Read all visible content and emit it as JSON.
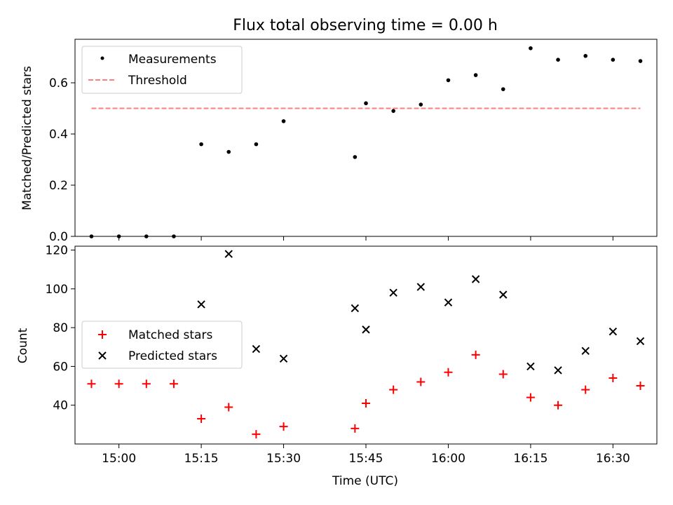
{
  "chart_data": [
    {
      "type": "scatter",
      "title": "Flux total observing time = 0.00 h",
      "xlabel": "",
      "ylabel": "Matched/Predicted stars",
      "xlim": [
        "14:52",
        "16:38"
      ],
      "ylim": [
        0,
        0.77
      ],
      "yticks": [
        0.0,
        0.2,
        0.4,
        0.6
      ],
      "ytick_labels": [
        "0.0",
        "0.2",
        "0.4",
        "0.6"
      ],
      "legend_position": "top-left",
      "series": [
        {
          "name": "Measurements",
          "marker": "dot",
          "color": "#000000",
          "x": [
            "14:55",
            "15:00",
            "15:05",
            "15:10",
            "15:15",
            "15:20",
            "15:25",
            "15:30",
            "15:43",
            "15:45",
            "15:50",
            "15:55",
            "16:00",
            "16:05",
            "16:10",
            "16:15",
            "16:20",
            "16:25",
            "16:30",
            "16:35"
          ],
          "y": [
            0.0,
            0.0,
            0.0,
            0.0,
            0.36,
            0.33,
            0.36,
            0.45,
            0.31,
            0.52,
            0.49,
            0.515,
            0.61,
            0.63,
            0.575,
            0.735,
            0.69,
            0.705,
            0.69,
            0.685
          ]
        },
        {
          "name": "Threshold",
          "marker": "dashed-line",
          "color": "#ff7f7f",
          "x": [
            "14:55",
            "16:35"
          ],
          "y": [
            0.5,
            0.5
          ]
        }
      ]
    },
    {
      "type": "scatter",
      "title": "",
      "xlabel": "Time (UTC)",
      "ylabel": "Count",
      "xlim": [
        "14:52",
        "16:38"
      ],
      "ylim": [
        20,
        122
      ],
      "xticks": [
        "15:00",
        "15:15",
        "15:30",
        "15:45",
        "16:00",
        "16:15",
        "16:30"
      ],
      "yticks": [
        40,
        60,
        80,
        100,
        120
      ],
      "ytick_labels": [
        "40",
        "60",
        "80",
        "100",
        "120"
      ],
      "legend_position": "center-left",
      "series": [
        {
          "name": "Matched stars",
          "marker": "plus",
          "color": "#ff0000",
          "x": [
            "14:55",
            "15:00",
            "15:05",
            "15:10",
            "15:15",
            "15:20",
            "15:25",
            "15:30",
            "15:43",
            "15:45",
            "15:50",
            "15:55",
            "16:00",
            "16:05",
            "16:10",
            "16:15",
            "16:20",
            "16:25",
            "16:30",
            "16:35"
          ],
          "y": [
            51,
            51,
            51,
            51,
            33,
            39,
            25,
            29,
            28,
            41,
            48,
            52,
            57,
            66,
            56,
            44,
            40,
            48,
            54,
            50
          ]
        },
        {
          "name": "Predicted stars",
          "marker": "x",
          "color": "#000000",
          "x": [
            "15:15",
            "15:20",
            "15:25",
            "15:30",
            "15:43",
            "15:45",
            "15:50",
            "15:55",
            "16:00",
            "16:05",
            "16:10",
            "16:15",
            "16:20",
            "16:25",
            "16:30",
            "16:35"
          ],
          "y": [
            92,
            118,
            69,
            64,
            90,
            79,
            98,
            101,
            93,
            105,
            97,
            60,
            58,
            68,
            78,
            73
          ]
        }
      ]
    }
  ]
}
